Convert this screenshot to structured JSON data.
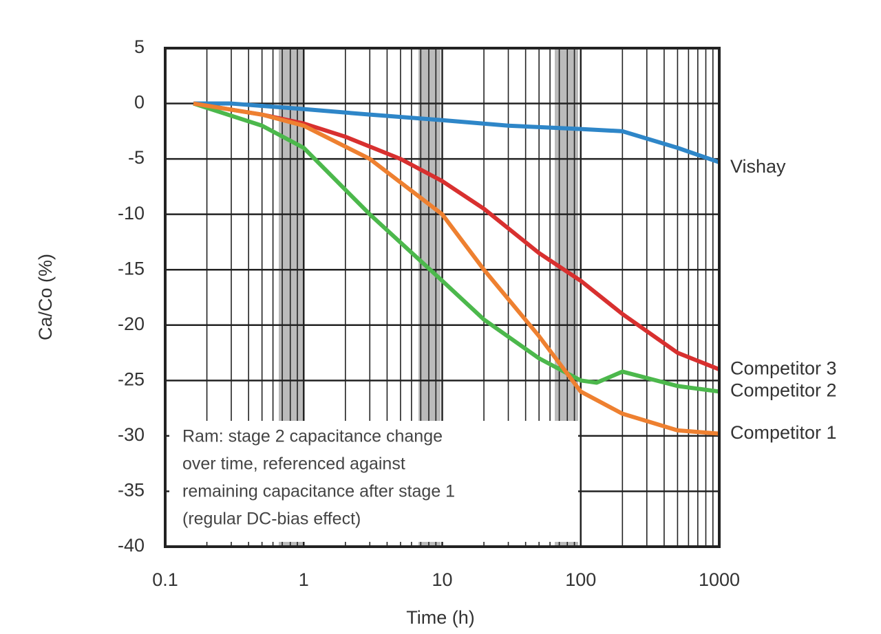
{
  "chart_data": {
    "type": "line",
    "x_label": "Time (h)",
    "y_label": "Ca/Co (%)",
    "xlim": [
      0.1,
      1000
    ],
    "xticks": [
      0.1,
      1,
      10,
      100,
      1000
    ],
    "xscale": "log",
    "ylim": [
      -40,
      5
    ],
    "yticks": [
      -40,
      -35,
      -30,
      -25,
      -20,
      -15,
      -10,
      -5,
      0,
      5
    ],
    "grid": true,
    "annotation": [
      "Ram: stage 2 capacitance change",
      "over time, referenced against",
      "remaining capacitance after stage 1",
      "(regular DC-bias effect)"
    ],
    "series": [
      {
        "name": "Vishay",
        "color": "#2e86c8",
        "x": [
          0.16,
          0.3,
          1,
          3,
          10,
          30,
          100,
          200,
          500,
          1000
        ],
        "values": [
          0,
          0,
          -0.5,
          -1,
          -1.5,
          -2,
          -2.3,
          -2.5,
          -4,
          -5.3
        ]
      },
      {
        "name": "Competitor 3",
        "color": "#d8302f",
        "x": [
          0.16,
          0.5,
          1,
          2,
          5,
          10,
          20,
          50,
          100,
          200,
          500,
          1000
        ],
        "values": [
          0,
          -1,
          -1.8,
          -3,
          -5,
          -7,
          -9.5,
          -13.5,
          -16,
          -19,
          -22.5,
          -24
        ]
      },
      {
        "name": "Competitor 2",
        "color": "#4cb84c",
        "x": [
          0.16,
          0.5,
          1,
          3,
          10,
          20,
          50,
          100,
          130,
          200,
          500,
          1000
        ],
        "values": [
          0,
          -2,
          -4,
          -10,
          -16,
          -19.5,
          -23,
          -25,
          -25.2,
          -24.2,
          -25.5,
          -26
        ]
      },
      {
        "name": "Competitor 1",
        "color": "#ee8030",
        "x": [
          0.16,
          0.5,
          1,
          3,
          10,
          20,
          50,
          100,
          200,
          500,
          1000
        ],
        "values": [
          0,
          -1,
          -2,
          -5,
          -10,
          -15,
          -21,
          -26,
          -28,
          -29.5,
          -29.8
        ]
      }
    ]
  }
}
